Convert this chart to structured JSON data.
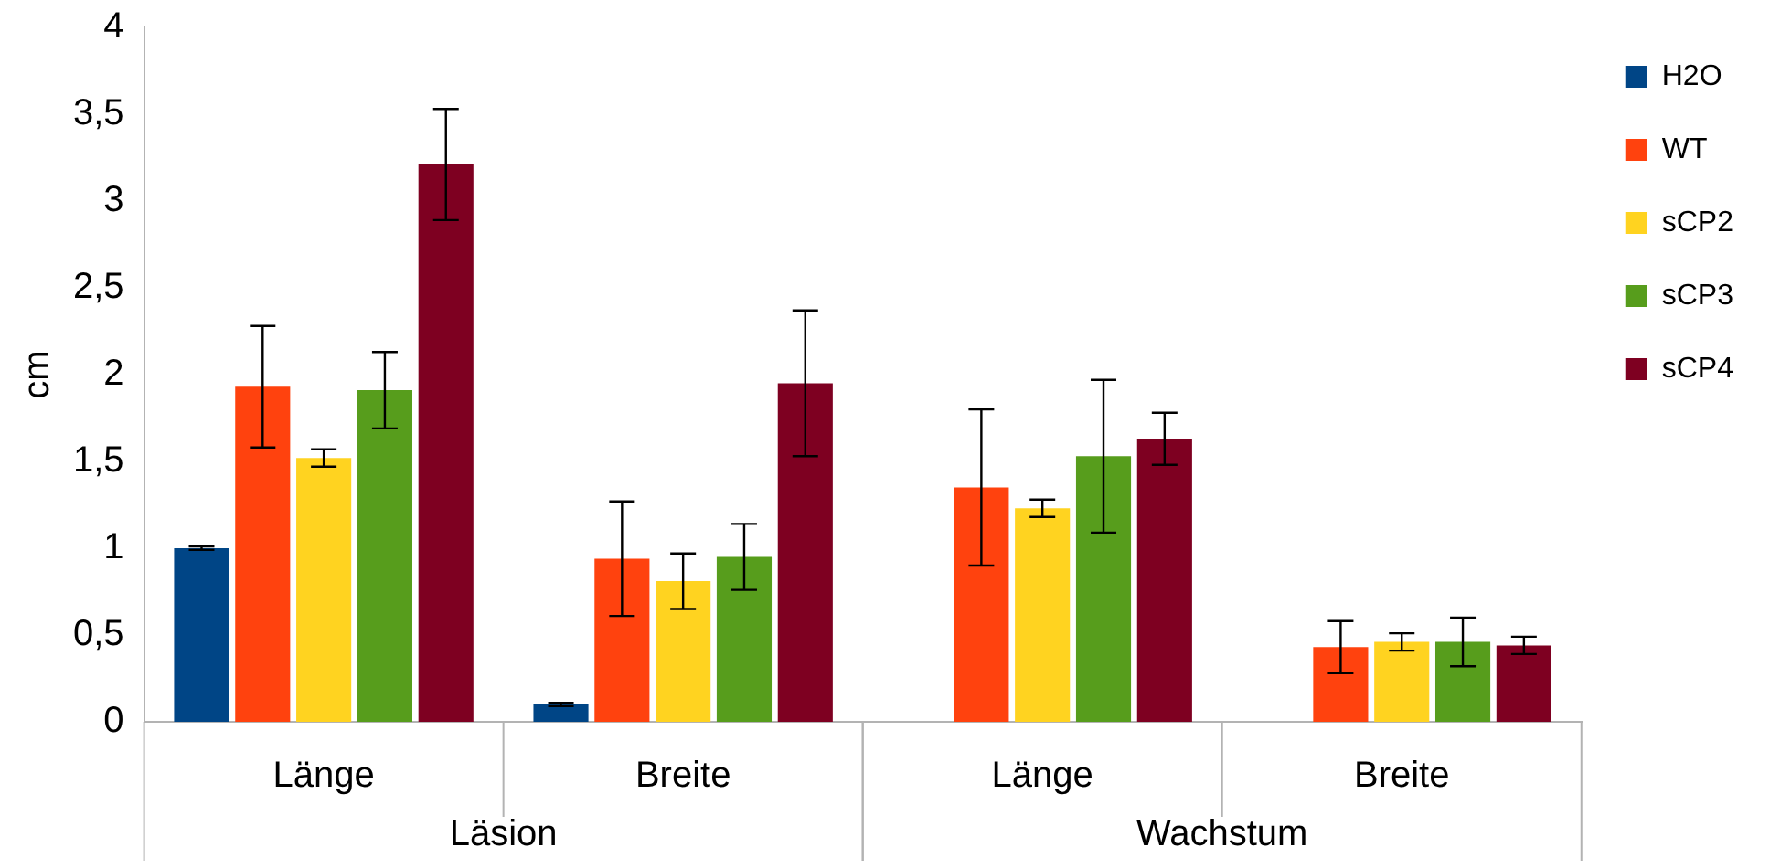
{
  "chart_data": {
    "type": "bar",
    "ylabel": "cm",
    "categories": [
      "Länge",
      "Breite",
      "Länge",
      "Breite"
    ],
    "annotations": [
      "Läsion",
      "Wachstum"
    ],
    "series": [
      {
        "name": "H2O",
        "color": "#004586",
        "values": [
          1.0,
          0.1,
          0.0,
          0.0
        ],
        "errors": [
          0.01,
          0.01,
          null,
          null
        ]
      },
      {
        "name": "WT",
        "color": "#ff420e",
        "values": [
          1.93,
          0.94,
          1.35,
          0.43
        ],
        "errors": [
          0.35,
          0.33,
          0.45,
          0.15
        ]
      },
      {
        "name": "sCP2",
        "color": "#ffd320",
        "values": [
          1.52,
          0.81,
          1.23,
          0.46
        ],
        "errors": [
          0.05,
          0.16,
          0.05,
          0.05
        ]
      },
      {
        "name": "sCP3",
        "color": "#579d1c",
        "values": [
          1.91,
          0.95,
          1.53,
          0.46
        ],
        "errors": [
          0.22,
          0.19,
          0.44,
          0.14
        ]
      },
      {
        "name": "sCP4",
        "color": "#7e0021",
        "values": [
          3.21,
          1.95,
          1.63,
          0.44
        ],
        "errors": [
          0.32,
          0.42,
          0.15,
          0.05
        ]
      }
    ],
    "ylim": [
      0,
      4
    ],
    "yticks": [
      0,
      {
        "value": 0.5,
        "label": "0,5"
      },
      1,
      {
        "value": 1.5,
        "label": "1,5"
      },
      2,
      {
        "value": 2.5,
        "label": "2,5"
      },
      3,
      {
        "value": 3.5,
        "label": "3,5"
      },
      4
    ],
    "legend": "right"
  }
}
